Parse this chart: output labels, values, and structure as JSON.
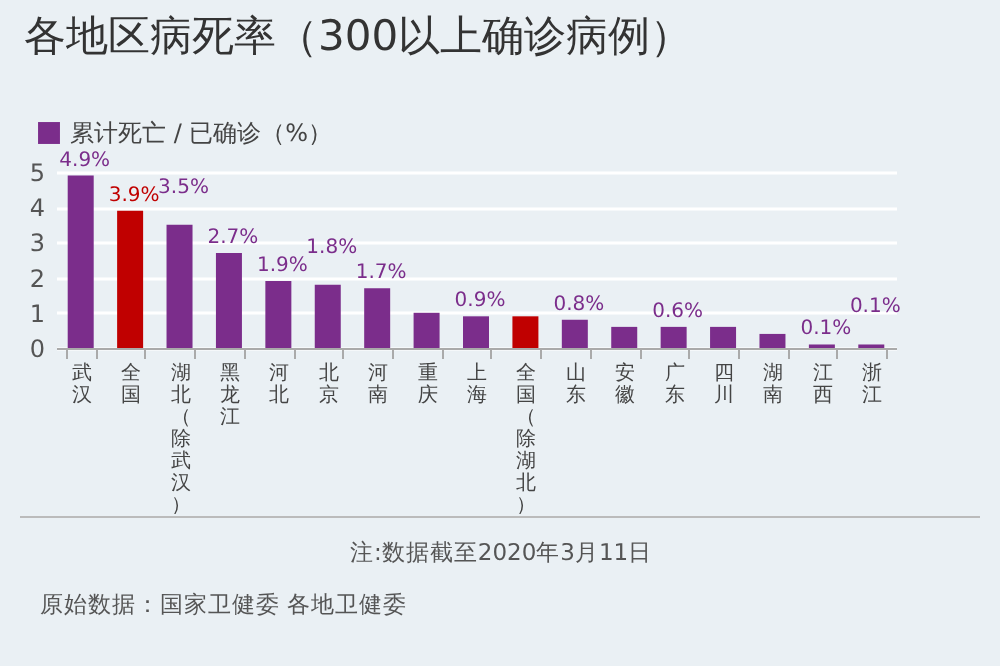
{
  "chart_data": {
    "type": "bar",
    "title": "各地区病死率（300以上确诊病例）",
    "categories": [
      "武汉",
      "全国",
      "湖北（除武汉）",
      "黑龙江",
      "河北",
      "北京",
      "河南",
      "重庆",
      "上海",
      "全国（除湖北）",
      "山东",
      "安徽",
      "广东",
      "四川",
      "湖南",
      "江西",
      "浙江"
    ],
    "series": [
      {
        "name": "累计死亡 / 已确诊（%）",
        "color": "#7b2d8b",
        "colors": [
          "#7b2d8b",
          "#c00000",
          "#7b2d8b",
          "#7b2d8b",
          "#7b2d8b",
          "#7b2d8b",
          "#7b2d8b",
          "#7b2d8b",
          "#7b2d8b",
          "#c00000",
          "#7b2d8b",
          "#7b2d8b",
          "#7b2d8b",
          "#7b2d8b",
          "#7b2d8b",
          "#7b2d8b",
          "#7b2d8b"
        ],
        "values": [
          4.9,
          3.9,
          3.5,
          2.7,
          1.9,
          1.8,
          1.7,
          1.0,
          0.9,
          0.9,
          0.8,
          0.6,
          0.6,
          0.6,
          0.4,
          0.1,
          0.1
        ],
        "value_labels": [
          "4.9%",
          "3.9%",
          "3.5%",
          "2.7%",
          "1.9%",
          "1.8%",
          "1.7%",
          null,
          "0.9%",
          null,
          "0.8%",
          null,
          "0.6%",
          null,
          null,
          "0.1%",
          "0.1%"
        ]
      }
    ],
    "ylim": [
      0,
      5
    ],
    "yticks": [
      0,
      1,
      2,
      3,
      4,
      5
    ],
    "grid": "y",
    "legend": "top left",
    "annotations": [
      "注:数据截至2020年3月11日",
      "原始数据：国家卫健委 各地卫健委"
    ]
  }
}
